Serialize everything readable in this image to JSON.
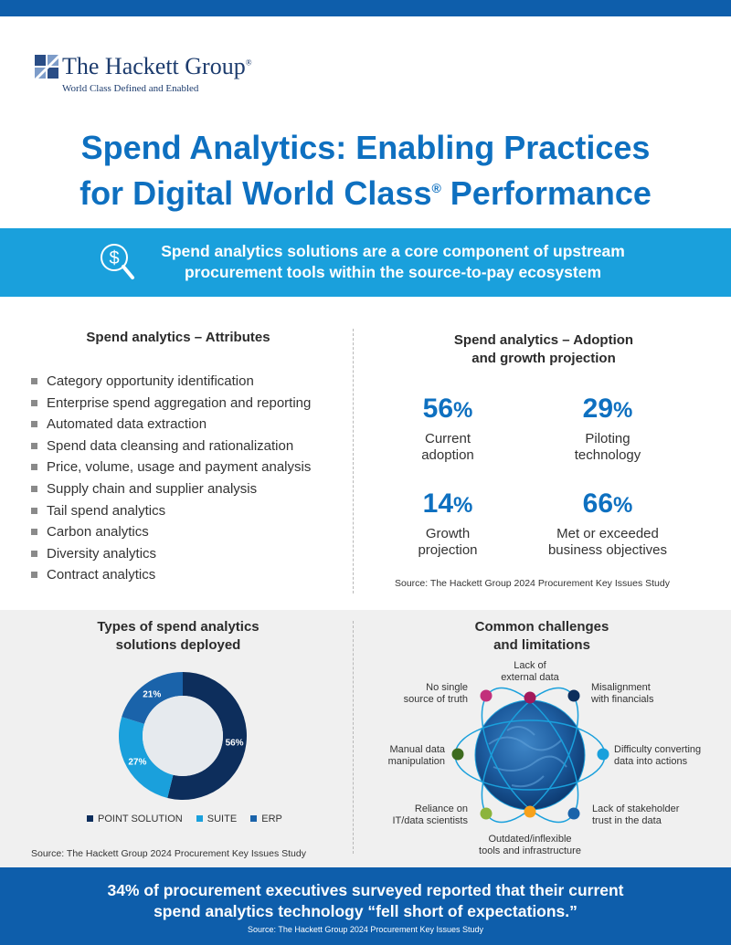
{
  "header": {
    "company_name": "The Hackett Group",
    "registered": "®",
    "tagline": "World Class Defined and Enabled"
  },
  "title": {
    "line1": "Spend Analytics: Enabling Practices",
    "line2_a": "for Digital World Class",
    "registered": "®",
    "line2_b": " Performance"
  },
  "banner": {
    "icon": "dollar-search-icon",
    "line1": "Spend analytics solutions are a core component of upstream",
    "line2": "procurement tools within the source-to-pay ecosystem"
  },
  "attributes": {
    "heading": "Spend analytics – Attributes",
    "items": [
      "Category opportunity identification",
      "Enterprise spend aggregation and reporting",
      "Automated data extraction",
      "Spend data cleansing and rationalization",
      "Price, volume, usage and payment analysis",
      "Supply chain and supplier analysis",
      "Tail spend analytics",
      "Carbon analytics",
      "Diversity analytics",
      "Contract analytics"
    ]
  },
  "adoption": {
    "heading_line1": "Spend analytics – Adoption",
    "heading_line2": "and growth projection",
    "stats": [
      {
        "value": "56",
        "unit": "%",
        "label_line1": "Current",
        "label_line2": "adoption"
      },
      {
        "value": "29",
        "unit": "%",
        "label_line1": "Piloting",
        "label_line2": "technology"
      },
      {
        "value": "14",
        "unit": "%",
        "label_line1": "Growth",
        "label_line2": "projection"
      },
      {
        "value": "66",
        "unit": "%",
        "label_line1": "Met or exceeded",
        "label_line2": "business objectives"
      }
    ],
    "source": "Source: The Hackett Group 2024 Procurement Key Issues Study"
  },
  "solutions": {
    "heading_line1": "Types of spend analytics",
    "heading_line2": "solutions deployed",
    "source": "Source: The Hackett Group 2024 Procurement Key Issues Study"
  },
  "chart_data": {
    "type": "pie",
    "variant": "donut",
    "categories": [
      "POINT SOLUTION",
      "SUITE",
      "ERP"
    ],
    "values": [
      56,
      27,
      21
    ],
    "data_labels": [
      "56%",
      "27%",
      "21%"
    ],
    "colors": [
      "#0d2e5c",
      "#1aa0dc",
      "#1a63aa"
    ],
    "legend_position": "bottom"
  },
  "challenges": {
    "heading_line1": "Common challenges",
    "heading_line2": "and limitations",
    "items": [
      {
        "line1": "Lack of",
        "line2": "external data",
        "color": "#a3195b"
      },
      {
        "line1": "Misalignment",
        "line2": "with financials",
        "color": "#0d2e5c"
      },
      {
        "line1": "Difficulty converting",
        "line2": "data into actions",
        "color": "#1aa0dc"
      },
      {
        "line1": "Lack of stakeholder",
        "line2": "trust in the data",
        "color": "#1a63aa"
      },
      {
        "line1": "Outdated/inflexible",
        "line2": "tools and infrastructure",
        "color": "#f7a21b"
      },
      {
        "line1": "Reliance on",
        "line2": "IT/data scientists",
        "color": "#8cb43c"
      },
      {
        "line1": "Manual data",
        "line2": "manipulation",
        "color": "#3d6b1f"
      },
      {
        "line1": "No single",
        "line2": "source of truth",
        "color": "#c2307b"
      }
    ]
  },
  "footer": {
    "line1": "34% of procurement executives surveyed reported that their current",
    "line2": "spend analytics technology “fell short of expectations.”",
    "source": "Source: The Hackett Group 2024 Procurement Key Issues Study"
  }
}
